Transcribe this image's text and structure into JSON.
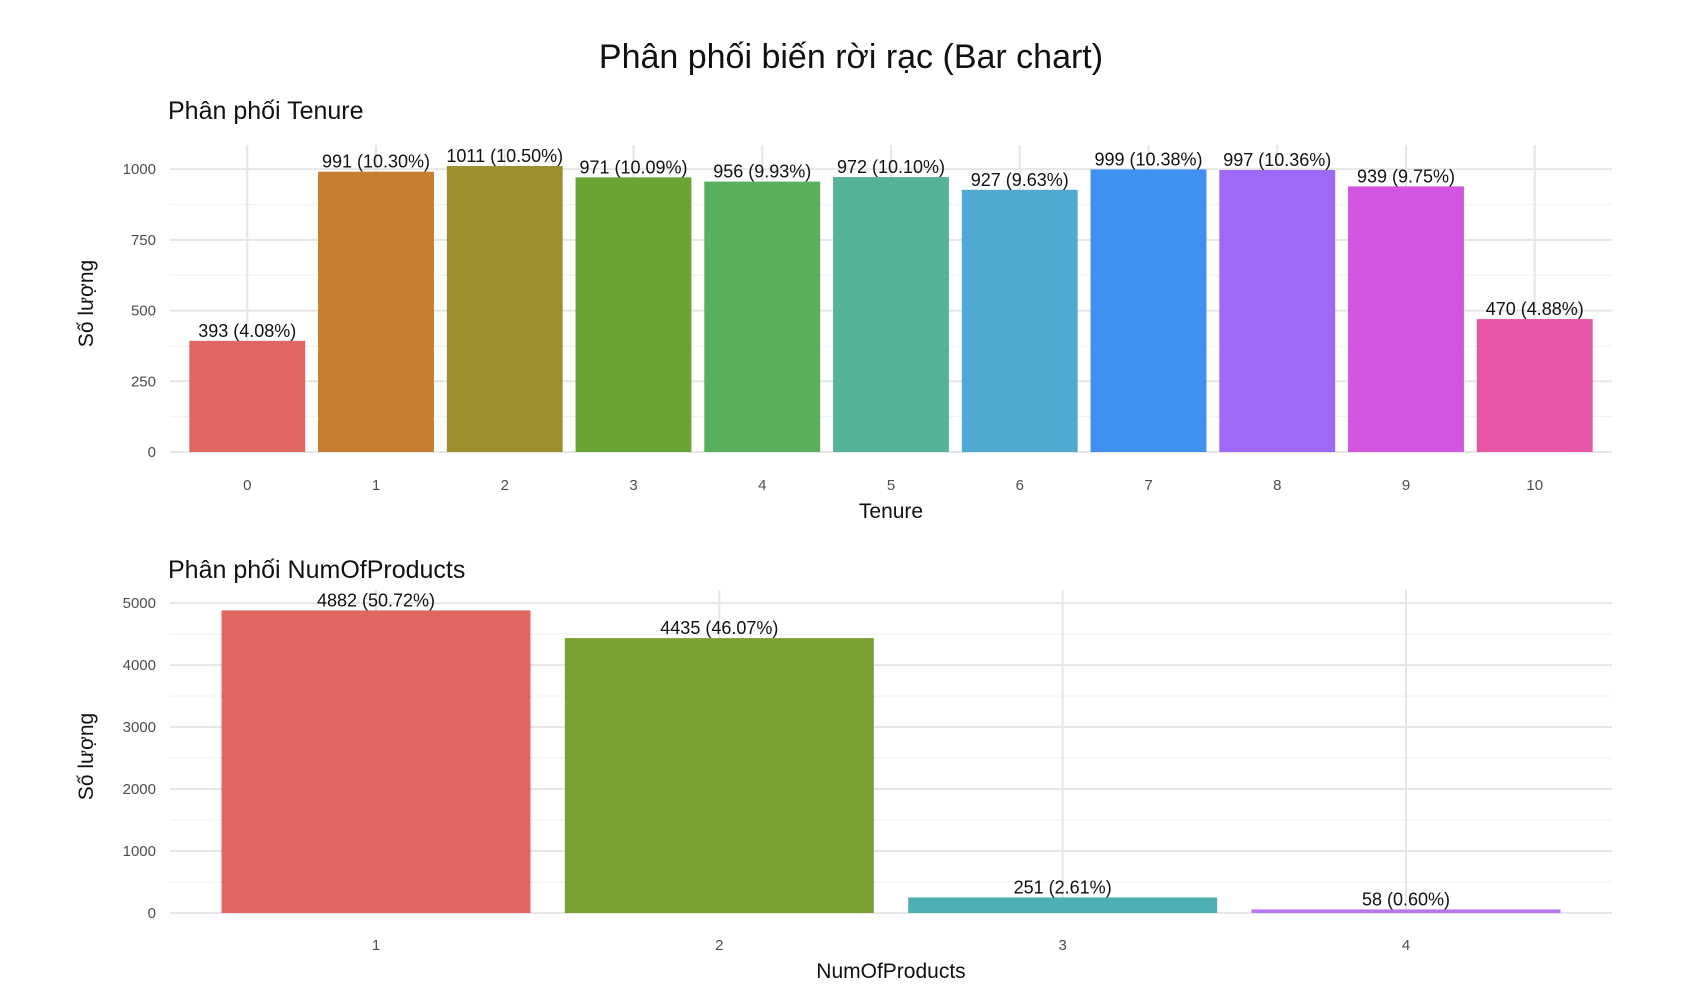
{
  "title": "Phân phối biến rời rạc (Bar chart)",
  "chart_data": [
    {
      "type": "bar",
      "title": "Phân phối Tenure",
      "xlabel": "Tenure",
      "ylabel": "Số lượng",
      "categories": [
        "0",
        "1",
        "2",
        "3",
        "4",
        "5",
        "6",
        "7",
        "8",
        "9",
        "10"
      ],
      "values": [
        393,
        991,
        1011,
        971,
        956,
        972,
        927,
        999,
        997,
        939,
        470
      ],
      "labels": [
        "393 (4.08%)",
        "991 (10.30%)",
        "1011 (10.50%)",
        "971 (10.09%)",
        "956 (9.93%)",
        "972 (10.10%)",
        "927 (9.63%)",
        "999 (10.38%)",
        "997 (10.36%)",
        "939 (9.75%)",
        "470 (4.88%)"
      ],
      "yticks": [
        0,
        250,
        500,
        750,
        1000
      ],
      "ylim": [
        0,
        1050
      ],
      "colors": [
        "#E06761",
        "#C77D2F",
        "#9E8F2E",
        "#6AA533",
        "#58B05C",
        "#55B399",
        "#50A9D1",
        "#4090F0",
        "#9E69F4",
        "#D354DE",
        "#E755A6"
      ],
      "grid": true,
      "legend": "none"
    },
    {
      "type": "bar",
      "title": "Phân phối NumOfProducts",
      "xlabel": "NumOfProducts",
      "ylabel": "Số lượng",
      "categories": [
        "1",
        "2",
        "3",
        "4"
      ],
      "values": [
        4882,
        4435,
        251,
        58
      ],
      "labels": [
        "4882 (50.72%)",
        "4435 (46.07%)",
        "251 (2.61%)",
        "58 (0.60%)"
      ],
      "yticks": [
        0,
        1000,
        2000,
        3000,
        4000,
        5000
      ],
      "ylim": [
        0,
        5050
      ],
      "colors": [
        "#E06761",
        "#7AA032",
        "#4FAFB5",
        "#B776F0"
      ],
      "grid": true,
      "legend": "none"
    }
  ]
}
